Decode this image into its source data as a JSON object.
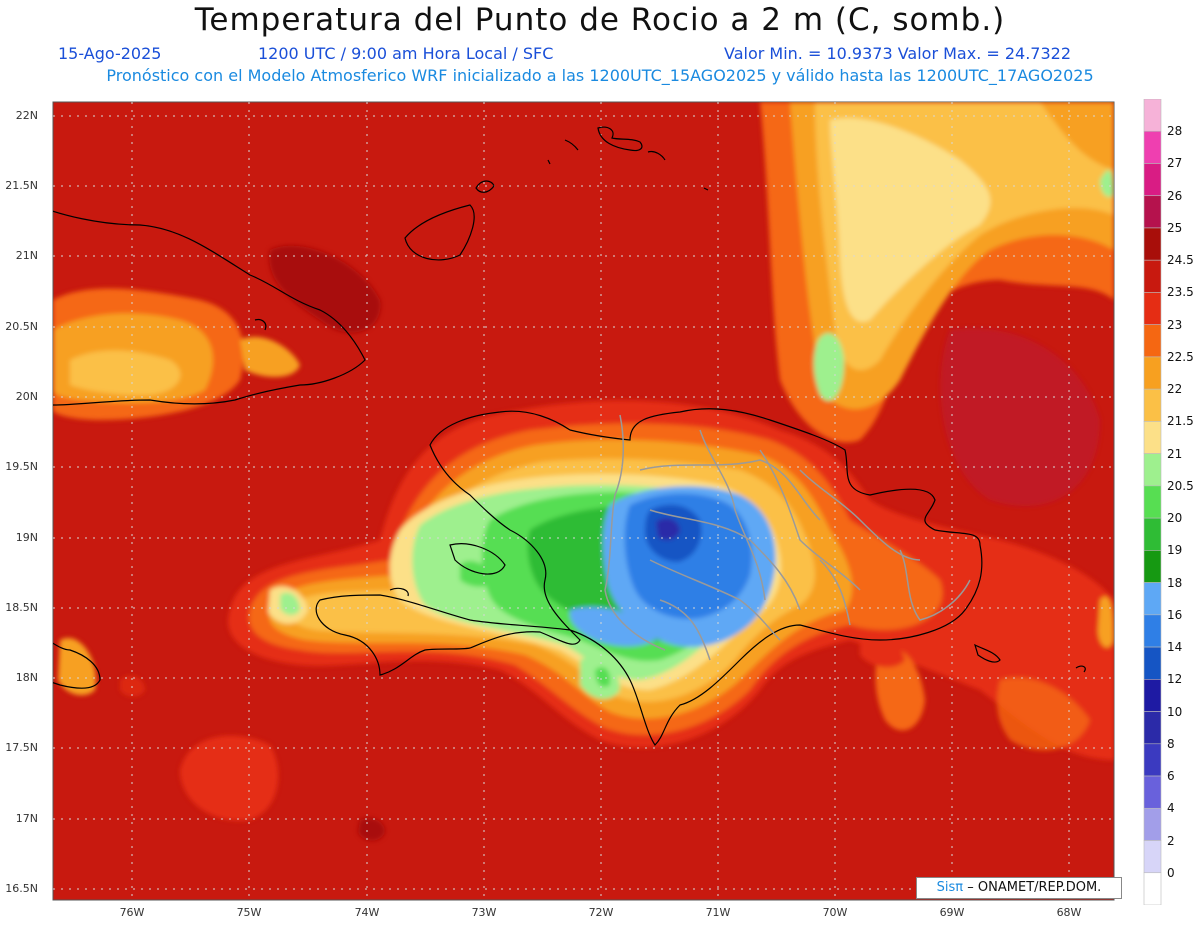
{
  "header": {
    "title": "Temperatura del Punto de Rocio a 2 m (C, somb.)",
    "date": "15-Ago-2025",
    "time": "1200 UTC / 9:00 am Hora Local / SFC",
    "minmax": "Valor Min. = 10.9373  Valor Max. = 24.7322",
    "model_line": "Pronóstico con el Modelo Atmosferico WRF inicializado a las 1200UTC_15AGO2025 y válido hasta las  1200UTC_17AGO2025"
  },
  "map": {
    "lat_labels": [
      "22N",
      "21.5N",
      "21N",
      "20.5N",
      "20N",
      "19.5N",
      "19N",
      "18.5N",
      "18N",
      "17.5N",
      "17N",
      "16.5N"
    ],
    "lon_labels": [
      "76W",
      "75W",
      "74W",
      "73W",
      "72W",
      "71W",
      "70W",
      "69W",
      "68W"
    ],
    "lat_ticks": [
      22,
      21.5,
      21,
      20.5,
      20,
      19.5,
      19,
      18.5,
      18,
      17.5,
      17,
      16.5
    ],
    "lon_ticks": [
      -76,
      -75,
      -74,
      -73,
      -72,
      -71,
      -70,
      -69,
      -68
    ],
    "lat_range": [
      16.4,
      22.1
    ],
    "lon_range": [
      -76.65,
      -67.6
    ],
    "colors": {
      "background": "#c8190f",
      "land_outline": "#000000",
      "province_lines": "#9a9a9a",
      "grid": "#cfcfcf"
    }
  },
  "colorbar": {
    "labels": [
      "28",
      "27",
      "26",
      "25",
      "24.5",
      "23.5",
      "23",
      "22.5",
      "22",
      "21.5",
      "21",
      "20.5",
      "20",
      "19",
      "18",
      "16",
      "14",
      "12",
      "10",
      "8",
      "6",
      "4",
      "2",
      "0"
    ],
    "colors": [
      "#f6b2d8",
      "#ef3fb0",
      "#d91c84",
      "#b5124d",
      "#a80e0a",
      "#c8190f",
      "#e52d14",
      "#f56712",
      "#f7a020",
      "#fbc046",
      "#fce088",
      "#9ef08e",
      "#57de52",
      "#2fbc35",
      "#169912",
      "#5ea8f5",
      "#2f7fe6",
      "#1555c4",
      "#1e1aa3",
      "#2b2aa8",
      "#3b3ac0",
      "#6961dc",
      "#a29ee9",
      "#d7d5f8",
      "#ffffff"
    ]
  },
  "credit": {
    "brand": "Sisπ",
    "text": "– ONAMET/REP.DOM."
  }
}
